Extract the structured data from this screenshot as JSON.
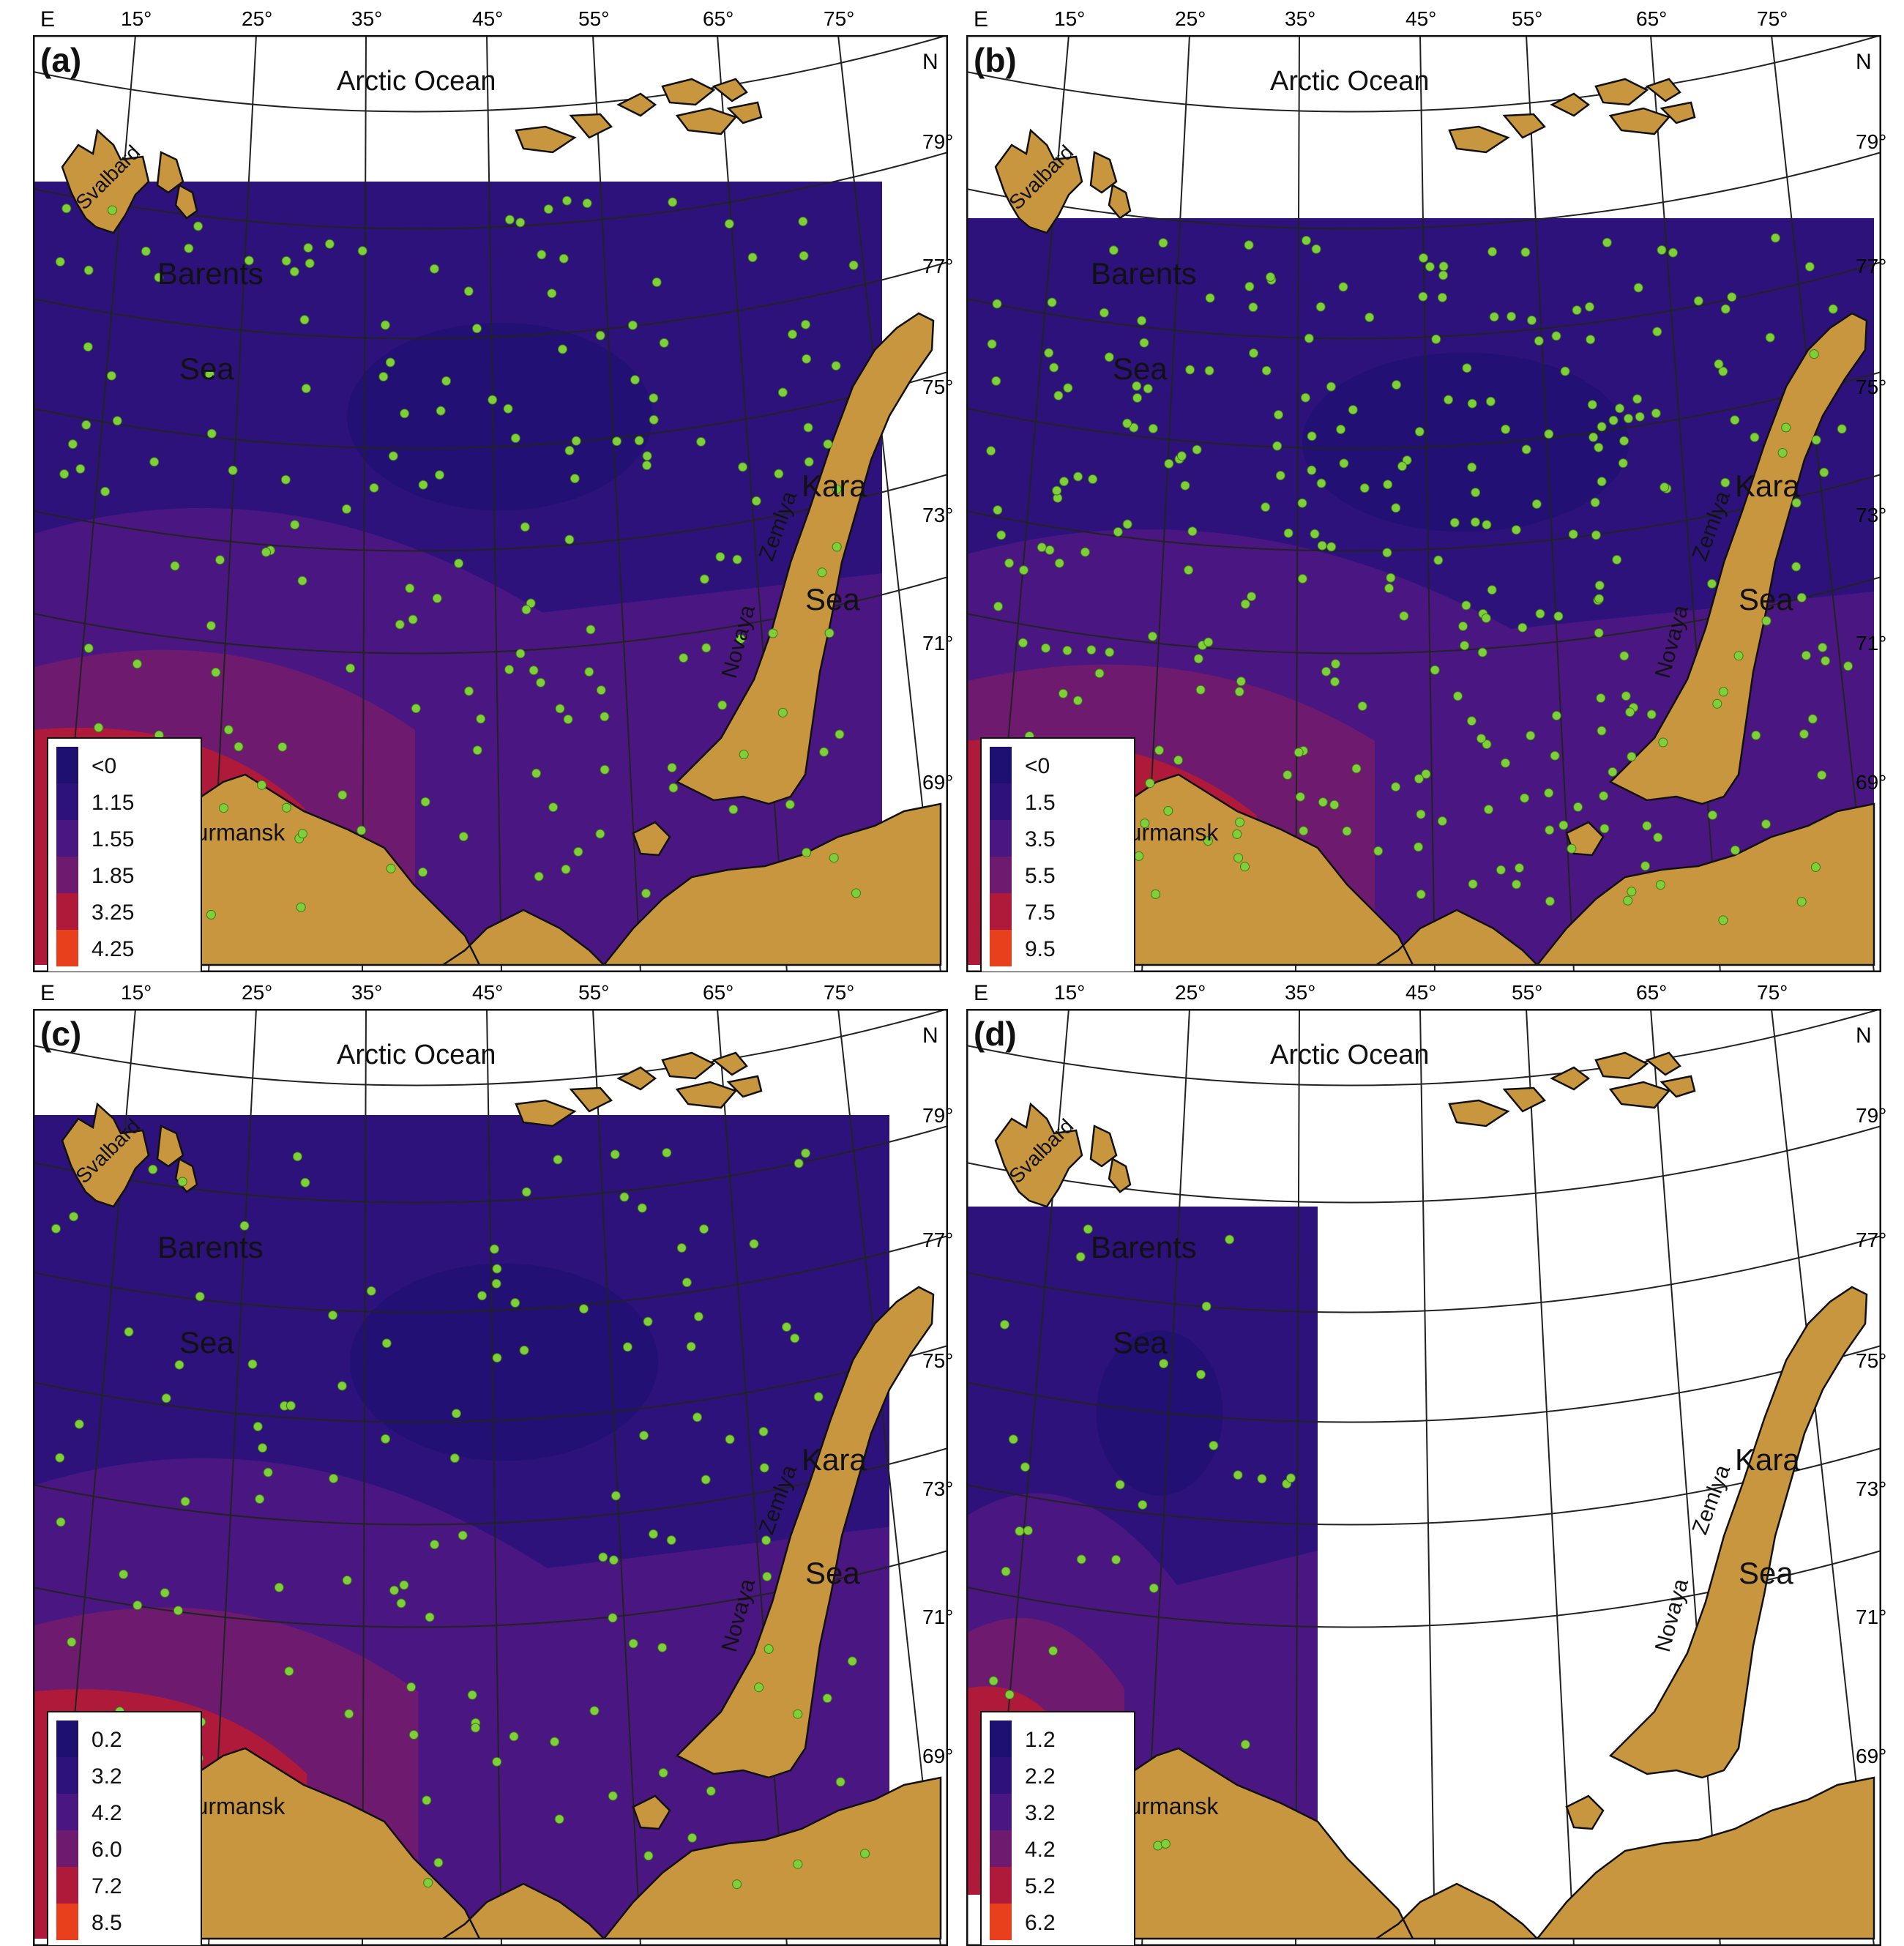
{
  "panels": [
    {
      "label": "(a)",
      "legend": [
        "<0",
        "1.15",
        "1.55",
        "1.85",
        "3.25",
        "4.25"
      ],
      "legend_colors": [
        "#1e1070",
        "#2e127c",
        "#4a1682",
        "#6d1a6f",
        "#b01a3a",
        "#e8401c"
      ],
      "barents": "Barents",
      "sea": "Sea",
      "kara": "Kara",
      "kara_sea": "Sea"
    },
    {
      "label": "(b)",
      "legend": [
        "<0",
        "1.5",
        "3.5",
        "5.5",
        "7.5",
        "9.5"
      ],
      "legend_colors": [
        "#1e1070",
        "#2e127c",
        "#4a1682",
        "#6d1a6f",
        "#b01a3a",
        "#e8401c"
      ],
      "barents": "Barents",
      "sea": "Sea",
      "kara": "Kara",
      "kara_sea": "Sea"
    },
    {
      "label": "(c)",
      "legend": [
        "0.2",
        "3.2",
        "4.2",
        "6.0",
        "7.2",
        "8.5"
      ],
      "legend_colors": [
        "#1e1070",
        "#2e127c",
        "#4a1682",
        "#6d1a6f",
        "#b01a3a",
        "#e8401c"
      ],
      "barents": "Barents",
      "sea": "Sea",
      "kara": "Kara",
      "kara_sea": "Sea"
    },
    {
      "label": "(d)",
      "legend": [
        "1.2",
        "2.2",
        "3.2",
        "4.2",
        "5.2",
        "6.2"
      ],
      "legend_colors": [
        "#1e1070",
        "#2e127c",
        "#4a1682",
        "#6d1a6f",
        "#b01a3a",
        "#e8401c"
      ],
      "barents": "Barents",
      "sea": "Sea",
      "kara": "Kara",
      "kara_sea": "Sea"
    }
  ],
  "map_labels": {
    "e": "E",
    "n": "N",
    "arctic_ocean": "Arctic Ocean",
    "svalbard": "Svalbard",
    "novaya": "Novaya",
    "zemlya": "Zemlya",
    "murmansk": "Murmansk"
  },
  "longitudes": [
    "15°",
    "25°",
    "35°",
    "45°",
    "55°",
    "65°",
    "75°"
  ],
  "latitudes": [
    "79°",
    "77°",
    "75°",
    "73°",
    "71°",
    "69°"
  ],
  "colors": {
    "land": "#c8963e",
    "water_white": "#ffffff",
    "sample_point": "#7fcf3a"
  }
}
